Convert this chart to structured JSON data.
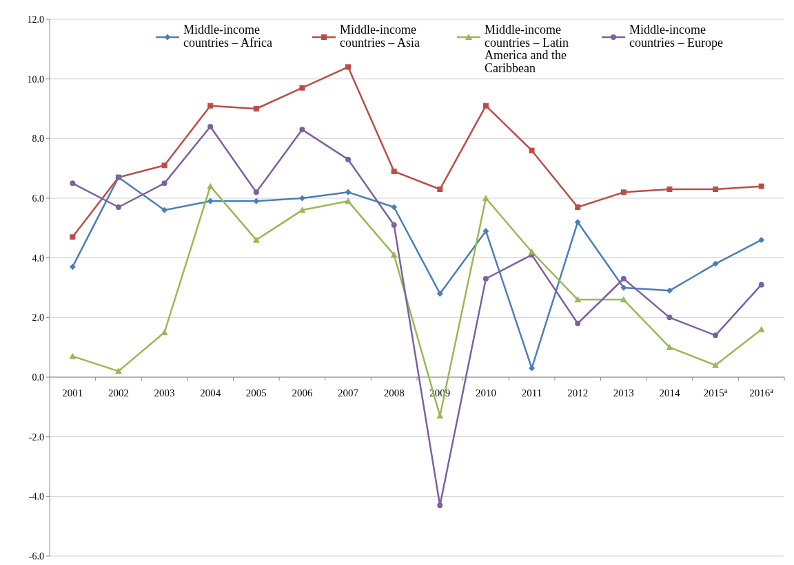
{
  "chart_data": {
    "type": "line",
    "categories": [
      "2001",
      "2002",
      "2003",
      "2004",
      "2005",
      "2006",
      "2007",
      "2008",
      "2009",
      "2010",
      "2011",
      "2012",
      "2013",
      "2014",
      "2015$^{a}$",
      "2016$^{a}$"
    ],
    "ylim": [
      -6,
      12
    ],
    "yticks": [
      {
        "value": -6,
        "label": "-6.0"
      },
      {
        "value": -4,
        "label": "-4.0"
      },
      {
        "value": -2,
        "label": "-2.0"
      },
      {
        "value": 0,
        "label": "0.0"
      },
      {
        "value": 2,
        "label": "2.0"
      },
      {
        "value": 4,
        "label": "4.0"
      },
      {
        "value": 6,
        "label": "6.0"
      },
      {
        "value": 8,
        "label": "8.0"
      },
      {
        "value": 10,
        "label": "10.0"
      },
      {
        "value": 12,
        "label": "12.0"
      }
    ],
    "grid": "y",
    "legend": "top",
    "line_style": "solid",
    "series": [
      {
        "name": "Middle-income countries – Africa",
        "color": "#4a7ebb",
        "marker": "diamond",
        "values": [
          3.7,
          6.7,
          5.6,
          5.9,
          5.9,
          6.0,
          6.2,
          5.7,
          2.8,
          4.9,
          0.3,
          5.2,
          3.0,
          2.9,
          3.8,
          4.6
        ]
      },
      {
        "name": "Middle-income countries – Asia",
        "color": "#be4b48",
        "marker": "square",
        "values": [
          4.7,
          6.7,
          7.1,
          9.1,
          9.0,
          9.7,
          10.4,
          6.9,
          6.3,
          9.1,
          7.6,
          5.7,
          6.2,
          6.3,
          6.3,
          6.4
        ]
      },
      {
        "name": "Middle-income countries – Latin America and the Caribbean",
        "color": "#98b954",
        "marker": "triangle",
        "values": [
          0.7,
          0.2,
          1.5,
          6.4,
          4.6,
          5.6,
          5.9,
          4.1,
          -1.3,
          6.0,
          4.2,
          2.6,
          2.6,
          1.0,
          0.4,
          1.6
        ]
      },
      {
        "name": "Middle-income countries – Europe",
        "color": "#7d60a0",
        "marker": "circle",
        "values": [
          6.5,
          5.7,
          6.5,
          8.4,
          6.2,
          8.3,
          7.3,
          5.1,
          -4.3,
          3.3,
          4.1,
          1.8,
          3.3,
          2.0,
          1.4,
          3.1
        ]
      }
    ]
  }
}
